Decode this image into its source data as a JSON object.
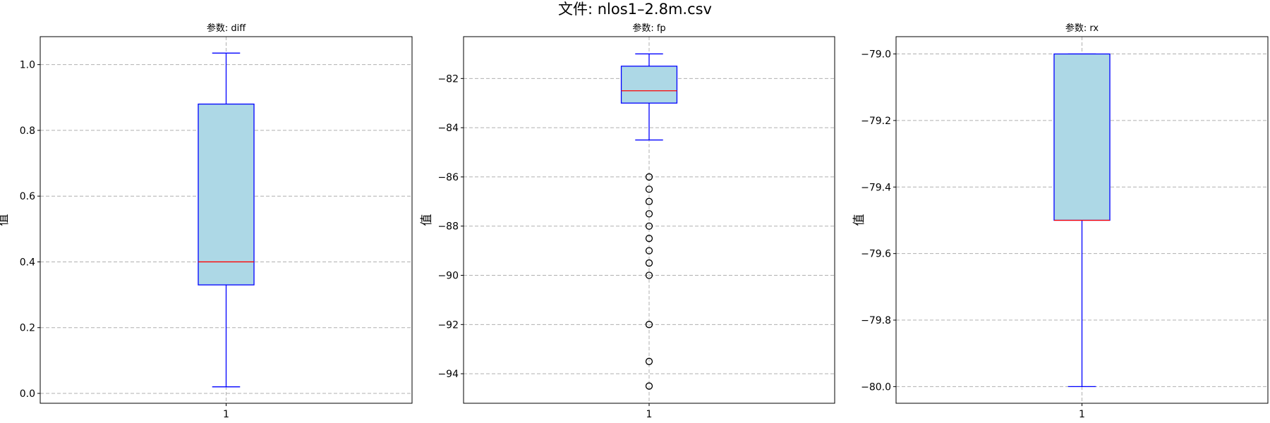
{
  "figure": {
    "title": "文件: nlos1–2.8m.csv"
  },
  "style": {
    "box_fill": "#add8e6",
    "box_edge": "#0000ff",
    "whisker_color": "#0000ff",
    "median_color": "#ff0000",
    "flier_edge": "#000000",
    "grid_color": "#b0b0b0"
  },
  "chart_data": [
    {
      "type": "box",
      "title": "参数: diff",
      "ylabel": "值",
      "xtick_labels": [
        "1"
      ],
      "ylim": [
        -0.03,
        1.085
      ],
      "yticks": [
        0.0,
        0.2,
        0.4,
        0.6,
        0.8,
        1.0
      ],
      "ytick_labels": [
        "0.0",
        "0.2",
        "0.4",
        "0.6",
        "0.8",
        "1.0"
      ],
      "grid": true,
      "box": {
        "whisker_low": 0.02,
        "q1": 0.33,
        "median": 0.4,
        "q3": 0.88,
        "whisker_high": 1.035
      },
      "fliers": []
    },
    {
      "type": "box",
      "title": "参数: fp",
      "ylabel": "值",
      "xtick_labels": [
        "1"
      ],
      "ylim": [
        -95.2,
        -80.3
      ],
      "yticks": [
        -82,
        -84,
        -86,
        -88,
        -90,
        -92,
        -94
      ],
      "ytick_labels": [
        "−82",
        "−84",
        "−86",
        "−88",
        "−90",
        "−92",
        "−94"
      ],
      "grid": true,
      "box": {
        "whisker_low": -84.5,
        "q1": -83.0,
        "median": -82.5,
        "q3": -81.5,
        "whisker_high": -81.0
      },
      "fliers": [
        -86.0,
        -86.5,
        -87.0,
        -87.5,
        -88.0,
        -88.5,
        -89.0,
        -89.5,
        -90.0,
        -92.0,
        -93.5,
        -94.5
      ]
    },
    {
      "type": "box",
      "title": "参数: rx",
      "ylabel": "值",
      "xtick_labels": [
        "1"
      ],
      "ylim": [
        -80.05,
        -78.948
      ],
      "yticks": [
        -79.0,
        -79.2,
        -79.4,
        -79.6,
        -79.8,
        -80.0
      ],
      "ytick_labels": [
        "−79.0",
        "−79.2",
        "−79.4",
        "−79.6",
        "−79.8",
        "−80.0"
      ],
      "grid": true,
      "box": {
        "whisker_low": -80.0,
        "q1": -79.5,
        "median": -79.5,
        "q3": -79.0,
        "whisker_high": -79.0
      },
      "fliers": []
    }
  ]
}
